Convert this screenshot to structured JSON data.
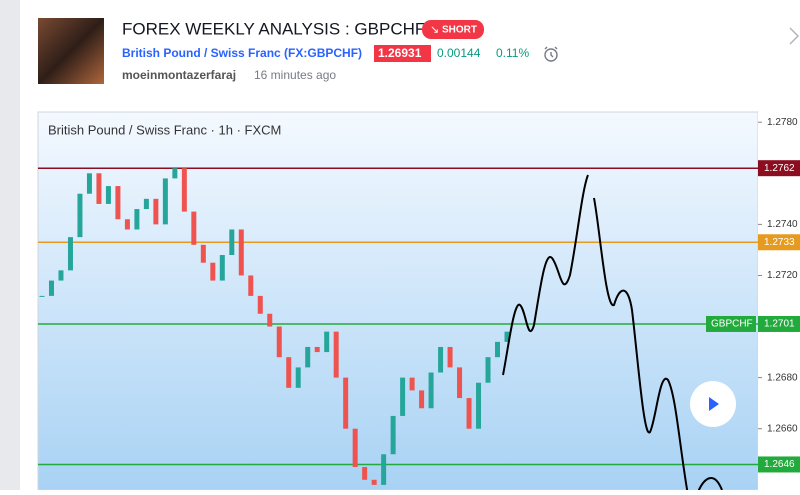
{
  "header": {
    "title": "FOREX WEEKLY ANALYSIS : GBPCHF",
    "badge": "SHORT",
    "symbol_name": "British Pound / Swiss Franc (FX:GBPCHF)",
    "price": 1.26931,
    "change": 0.00144,
    "change_pct": "0.11%",
    "author": "moeinmontazerfaraj",
    "time": "16 minutes ago"
  },
  "chart_data": {
    "type": "candlestick",
    "legend": "British Pound / Swiss Franc · 1h · FXCM",
    "closes": [
      1.2712,
      1.2718,
      1.2722,
      1.2735,
      1.2752,
      1.276,
      1.2748,
      1.2755,
      1.2742,
      1.2738,
      1.2746,
      1.275,
      1.274,
      1.2758,
      1.2762,
      1.2745,
      1.2732,
      1.2725,
      1.2718,
      1.2728,
      1.2738,
      1.272,
      1.2712,
      1.2705,
      1.27,
      1.2688,
      1.2676,
      1.2684,
      1.2692,
      1.269,
      1.2698,
      1.268,
      1.266,
      1.2645,
      1.264,
      1.2638,
      1.265,
      1.2665,
      1.268,
      1.2675,
      1.2668,
      1.2682,
      1.2692,
      1.2684,
      1.2672,
      1.266,
      1.2678,
      1.2688,
      1.2694,
      1.2698
    ],
    "up_color": "#26a69a",
    "down_color": "#ef5350",
    "ylim": [
      1.2636,
      1.2784
    ],
    "yticks": [
      {
        "value": 1.278,
        "label": "1.2780"
      },
      {
        "value": 1.274,
        "label": "1.2740"
      },
      {
        "value": 1.272,
        "label": "1.2720"
      },
      {
        "value": 1.268,
        "label": "1.2680"
      },
      {
        "value": 1.266,
        "label": "1.2660"
      }
    ],
    "levels": [
      {
        "value": 1.2762,
        "color": "#8b0d1f"
      },
      {
        "value": 1.2733,
        "color": "#e69a1e"
      },
      {
        "name": "GBPCHF",
        "value": 1.2701,
        "color": "#22ab3c"
      },
      {
        "value": 1.2646,
        "color": "#22ab3c"
      }
    ]
  }
}
